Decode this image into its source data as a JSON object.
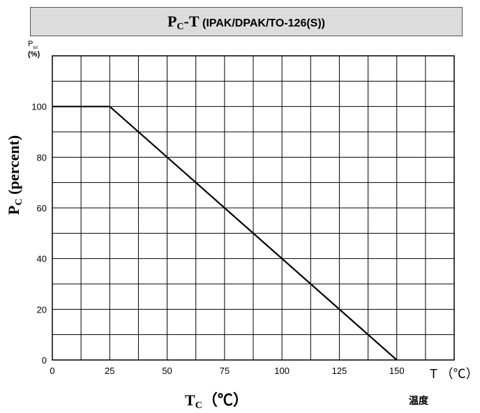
{
  "title": {
    "main": "P",
    "sub": "C",
    "dash": "-T",
    "rest": " (IPAK/DPAK/TO-126(S))"
  },
  "ylabel": {
    "main": "P",
    "sub": "C",
    "rest": " (percent)"
  },
  "xlabel": {
    "main": "T",
    "sub": "C",
    "rest": "（℃）"
  },
  "xlabel_right": "温度",
  "x_unit": "T （℃）",
  "y_axis_tag": {
    "main": "P",
    "sub": "tot",
    "unit": "(%)"
  },
  "chart_data": {
    "type": "line",
    "title": "PC-T (IPAK/DPAK/TO-126(S))",
    "xlabel": "TC（℃）",
    "ylabel": "PC (percent)",
    "x_ticks": [
      0,
      25,
      50,
      75,
      100,
      125,
      150
    ],
    "y_ticks": [
      0,
      20,
      40,
      60,
      80,
      100
    ],
    "xlim": [
      0,
      175
    ],
    "ylim": [
      0,
      120
    ],
    "grid": true,
    "series": [
      {
        "x": [
          0,
          25,
          150
        ],
        "y": [
          100,
          100,
          0
        ]
      }
    ]
  }
}
